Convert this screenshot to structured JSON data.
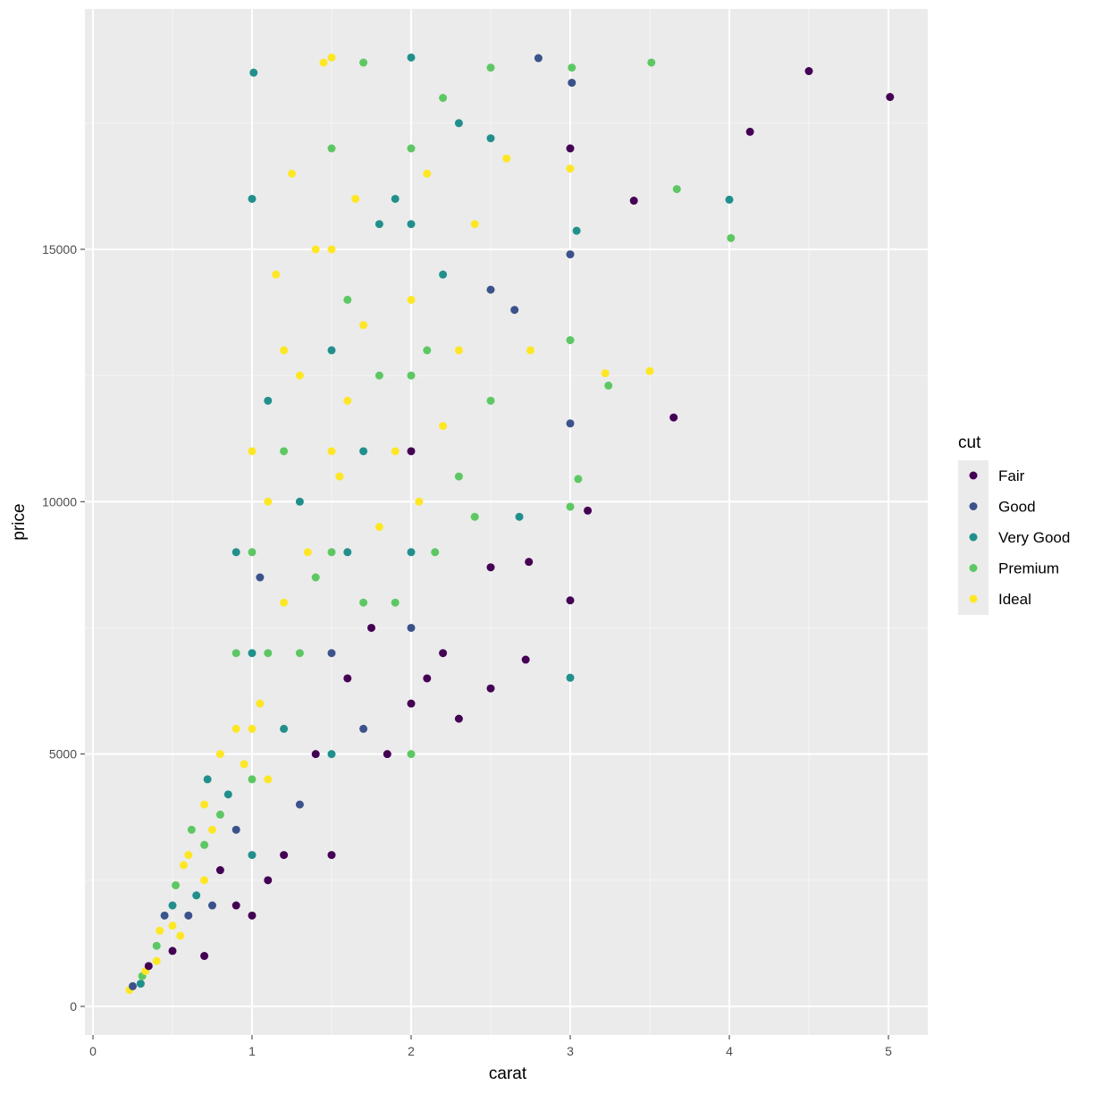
{
  "chart_data": {
    "type": "scatter",
    "title": "",
    "xlabel": "carat",
    "ylabel": "price",
    "xlim": [
      -0.04,
      5.25
    ],
    "ylim": [
      -520,
      19800
    ],
    "x_ticks": [
      "0",
      "1",
      "2",
      "3",
      "4",
      "5"
    ],
    "y_ticks": [
      "0",
      "5000",
      "10000",
      "15000"
    ],
    "grid": true,
    "legend": {
      "title": "cut",
      "position": "right",
      "entries": [
        "Fair",
        "Good",
        "Very Good",
        "Premium",
        "Ideal"
      ]
    },
    "colors": [
      "#440154",
      "#3b528b",
      "#21908c",
      "#5dc863",
      "#fde725"
    ],
    "note_points": "[carat, price, cut index] sample of depicted points",
    "points": [
      [
        0.23,
        326,
        4
      ],
      [
        0.25,
        400,
        1
      ],
      [
        0.3,
        450,
        2
      ],
      [
        0.31,
        600,
        3
      ],
      [
        0.33,
        700,
        4
      ],
      [
        0.35,
        800,
        0
      ],
      [
        0.4,
        900,
        4
      ],
      [
        0.4,
        1200,
        3
      ],
      [
        0.42,
        1500,
        4
      ],
      [
        0.45,
        1800,
        1
      ],
      [
        0.5,
        1100,
        0
      ],
      [
        0.5,
        1600,
        4
      ],
      [
        0.5,
        2000,
        2
      ],
      [
        0.52,
        2400,
        3
      ],
      [
        0.55,
        1400,
        4
      ],
      [
        0.57,
        2800,
        4
      ],
      [
        0.6,
        1800,
        1
      ],
      [
        0.6,
        3000,
        4
      ],
      [
        0.62,
        3500,
        3
      ],
      [
        0.65,
        2200,
        2
      ],
      [
        0.7,
        1000,
        0
      ],
      [
        0.7,
        2500,
        4
      ],
      [
        0.7,
        3200,
        3
      ],
      [
        0.7,
        4000,
        4
      ],
      [
        0.72,
        4500,
        2
      ],
      [
        0.75,
        2000,
        1
      ],
      [
        0.75,
        3500,
        4
      ],
      [
        0.8,
        2700,
        0
      ],
      [
        0.8,
        3800,
        3
      ],
      [
        0.8,
        5000,
        4
      ],
      [
        0.85,
        4200,
        2
      ],
      [
        0.9,
        2000,
        0
      ],
      [
        0.9,
        3500,
        1
      ],
      [
        0.9,
        5500,
        4
      ],
      [
        0.9,
        7000,
        3
      ],
      [
        0.9,
        9000,
        2
      ],
      [
        0.95,
        4800,
        4
      ],
      [
        1.0,
        1800,
        0
      ],
      [
        1.0,
        3000,
        2
      ],
      [
        1.0,
        4500,
        3
      ],
      [
        1.0,
        5500,
        4
      ],
      [
        1.0,
        7000,
        2
      ],
      [
        1.0,
        9000,
        3
      ],
      [
        1.0,
        11000,
        4
      ],
      [
        1.0,
        16000,
        2
      ],
      [
        1.01,
        18500,
        2
      ],
      [
        1.05,
        6000,
        4
      ],
      [
        1.05,
        8500,
        1
      ],
      [
        1.1,
        2500,
        0
      ],
      [
        1.1,
        4500,
        4
      ],
      [
        1.1,
        7000,
        3
      ],
      [
        1.1,
        10000,
        4
      ],
      [
        1.1,
        12000,
        2
      ],
      [
        1.15,
        14500,
        4
      ],
      [
        1.2,
        3000,
        0
      ],
      [
        1.2,
        5500,
        2
      ],
      [
        1.2,
        8000,
        4
      ],
      [
        1.2,
        11000,
        3
      ],
      [
        1.2,
        13000,
        4
      ],
      [
        1.25,
        16500,
        4
      ],
      [
        1.3,
        4000,
        1
      ],
      [
        1.3,
        7000,
        3
      ],
      [
        1.3,
        10000,
        2
      ],
      [
        1.3,
        12500,
        4
      ],
      [
        1.35,
        9000,
        4
      ],
      [
        1.4,
        5000,
        0
      ],
      [
        1.4,
        8500,
        3
      ],
      [
        1.4,
        15000,
        4
      ],
      [
        1.45,
        18700,
        4
      ],
      [
        1.5,
        3000,
        0
      ],
      [
        1.5,
        5000,
        2
      ],
      [
        1.5,
        7000,
        1
      ],
      [
        1.5,
        9000,
        3
      ],
      [
        1.5,
        11000,
        4
      ],
      [
        1.5,
        13000,
        2
      ],
      [
        1.5,
        15000,
        4
      ],
      [
        1.5,
        17000,
        3
      ],
      [
        1.5,
        18800,
        4
      ],
      [
        1.55,
        10500,
        4
      ],
      [
        1.6,
        6500,
        0
      ],
      [
        1.6,
        9000,
        2
      ],
      [
        1.6,
        12000,
        4
      ],
      [
        1.6,
        14000,
        3
      ],
      [
        1.65,
        16000,
        4
      ],
      [
        1.7,
        5500,
        1
      ],
      [
        1.7,
        8000,
        3
      ],
      [
        1.7,
        11000,
        2
      ],
      [
        1.7,
        13500,
        4
      ],
      [
        1.7,
        18700,
        3
      ],
      [
        1.75,
        7500,
        0
      ],
      [
        1.8,
        9500,
        4
      ],
      [
        1.8,
        12500,
        3
      ],
      [
        1.8,
        15500,
        2
      ],
      [
        1.85,
        5000,
        0
      ],
      [
        1.9,
        8000,
        3
      ],
      [
        1.9,
        11000,
        4
      ],
      [
        1.9,
        16000,
        2
      ],
      [
        2.0,
        5000,
        3
      ],
      [
        2.0,
        6000,
        0
      ],
      [
        2.0,
        7500,
        1
      ],
      [
        2.0,
        9000,
        2
      ],
      [
        2.0,
        11000,
        0
      ],
      [
        2.0,
        12500,
        3
      ],
      [
        2.0,
        14000,
        4
      ],
      [
        2.0,
        15500,
        2
      ],
      [
        2.0,
        17000,
        3
      ],
      [
        2.0,
        18800,
        2
      ],
      [
        2.05,
        10000,
        4
      ],
      [
        2.1,
        6500,
        0
      ],
      [
        2.1,
        13000,
        3
      ],
      [
        2.1,
        16500,
        4
      ],
      [
        2.15,
        9000,
        3
      ],
      [
        2.2,
        7000,
        0
      ],
      [
        2.2,
        11500,
        4
      ],
      [
        2.2,
        14500,
        2
      ],
      [
        2.2,
        18000,
        3
      ],
      [
        2.3,
        5700,
        0
      ],
      [
        2.3,
        10500,
        3
      ],
      [
        2.3,
        13000,
        4
      ],
      [
        2.3,
        17500,
        2
      ],
      [
        2.4,
        9700,
        3
      ],
      [
        2.4,
        15500,
        4
      ],
      [
        2.5,
        6300,
        0
      ],
      [
        2.5,
        8700,
        0
      ],
      [
        2.5,
        12000,
        3
      ],
      [
        2.5,
        14200,
        1
      ],
      [
        2.5,
        17200,
        2
      ],
      [
        2.5,
        18600,
        3
      ],
      [
        2.6,
        16800,
        4
      ],
      [
        2.65,
        13800,
        1
      ],
      [
        2.68,
        9700,
        2
      ],
      [
        2.72,
        6870,
        0
      ],
      [
        2.74,
        8807,
        0
      ],
      [
        2.75,
        13000,
        4
      ],
      [
        2.8,
        18788,
        1
      ],
      [
        3.0,
        6512,
        2
      ],
      [
        3.0,
        8044,
        0
      ],
      [
        3.0,
        9900,
        3
      ],
      [
        3.0,
        11550,
        1
      ],
      [
        3.0,
        13200,
        3
      ],
      [
        3.0,
        14900,
        1
      ],
      [
        3.0,
        16600,
        4
      ],
      [
        3.0,
        17000,
        0
      ],
      [
        3.01,
        18300,
        1
      ],
      [
        3.01,
        18600,
        3
      ],
      [
        3.04,
        15368,
        2
      ],
      [
        3.05,
        10450,
        3
      ],
      [
        3.11,
        9823,
        0
      ],
      [
        3.22,
        12545,
        4
      ],
      [
        3.24,
        12300,
        3
      ],
      [
        3.4,
        15964,
        0
      ],
      [
        3.5,
        12587,
        4
      ],
      [
        3.51,
        18701,
        3
      ],
      [
        3.65,
        11668,
        0
      ],
      [
        3.67,
        16193,
        3
      ],
      [
        4.0,
        15984,
        2
      ],
      [
        4.01,
        15223,
        3
      ],
      [
        4.13,
        17329,
        0
      ],
      [
        4.5,
        18531,
        0
      ],
      [
        5.01,
        18018,
        0
      ]
    ]
  }
}
